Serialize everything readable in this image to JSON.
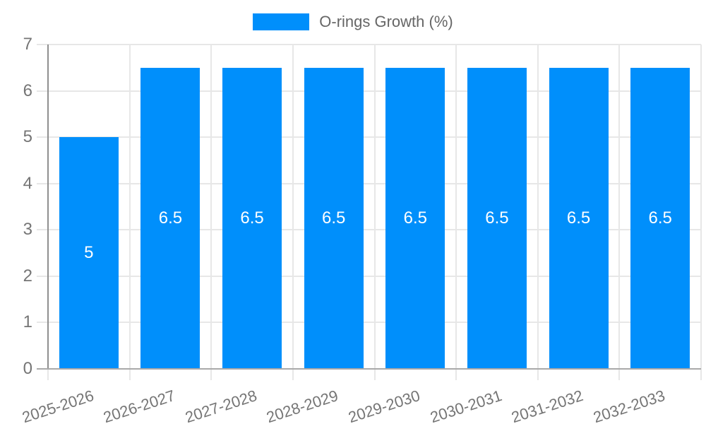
{
  "chart_data": {
    "type": "bar",
    "title": "",
    "legend_position": "top",
    "legend": [
      {
        "label": "O-rings Growth (%)",
        "color": "#008FFB"
      }
    ],
    "categories": [
      "2025-2026",
      "2026-2027",
      "2027-2028",
      "2028-2029",
      "2029-2030",
      "2030-2031",
      "2031-2032",
      "2032-2033"
    ],
    "series": [
      {
        "name": "O-rings Growth (%)",
        "color": "#008FFB",
        "values": [
          5,
          6.5,
          6.5,
          6.5,
          6.5,
          6.5,
          6.5,
          6.5
        ]
      }
    ],
    "bar_value_labels": [
      "5",
      "6.5",
      "6.5",
      "6.5",
      "6.5",
      "6.5",
      "6.5",
      "6.5"
    ],
    "ylim": [
      0,
      7
    ],
    "yticks": [
      "0",
      "1",
      "2",
      "3",
      "4",
      "5",
      "6",
      "7"
    ],
    "xlabel": "",
    "ylabel": "",
    "grid": true,
    "x_tick_rotation_deg": -18,
    "colors": {
      "bar": "#008FFB",
      "value_label": "#FFFFFF",
      "grid_line": "#E7E7E7",
      "y_axis_line": "#8F8F8F",
      "x_axis_line": "#A9A9A9",
      "axis_tick_label": "#757575",
      "legend_text": "#666666",
      "background": "#FFFFFF"
    }
  },
  "legend": {
    "item_label": "O-rings Growth (%)"
  }
}
